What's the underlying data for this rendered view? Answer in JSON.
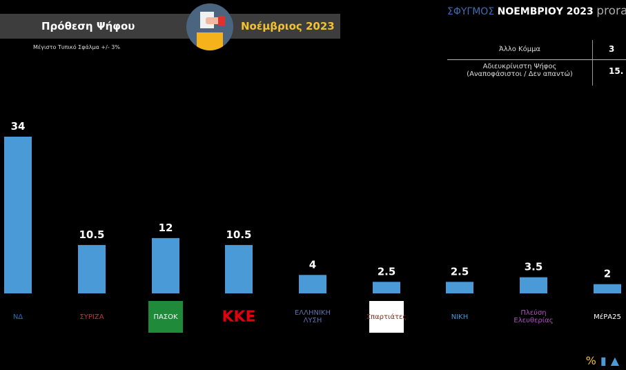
{
  "header": {
    "title": "Πρόθεση Ψήφου",
    "date": "Νοέμβριος 2023",
    "subtitle": "Μέγιστο Τυπικό Σφάλμα +/- 3%",
    "brand_1": "ΣΦΥΓΜΟΣ",
    "brand_2": "ΝΟΕΜΒΡΙΟΥ 2023",
    "brand_3": "prorata"
  },
  "side_table": {
    "rows": [
      {
        "label": "Άλλο Κόμμα",
        "value": "3"
      },
      {
        "label": "Αδιευκρίνιστη Ψήφος\n(Αναποφάσιστοι / Δεν απαντώ)",
        "value": "15."
      }
    ]
  },
  "colors": {
    "bar": "#4a9ad8",
    "background": "#000000",
    "accent": "#f2c230"
  },
  "chart_data": {
    "type": "bar",
    "title": "Πρόθεση Ψήφου",
    "categories": [
      "ΝΔ",
      "ΣΥΡΙΖΑ",
      "ΠΑΣΟΚ",
      "ΚΚΕ",
      "ΕΛΛΗΝΙΚΗ ΛΥΣΗ",
      "Σπαρτιάτες",
      "ΝΙΚΗ",
      "Πλεύση Ελευθερίας",
      "ΜέΡΑ25"
    ],
    "values": [
      34,
      10.5,
      12,
      10.5,
      4,
      2.5,
      2.5,
      3.5,
      2
    ],
    "labels": [
      "34",
      "10.5",
      "12",
      "10.5",
      "4",
      "2.5",
      "2.5",
      "3.5",
      "2"
    ],
    "ylim": [
      0,
      34
    ],
    "grid": false
  },
  "logos": [
    "ΝΔ",
    "ΣΥΡΙΖΑ",
    "ΠΑΣΟΚ",
    "ΚΚΕ",
    "ΕΛΛΗΝΙΚΗ ΛΥΣΗ",
    "Σπαρτιάτες",
    "ΝΙΚΗ",
    "Πλεύση Ελευθερίας",
    "ΜέΡΑ25"
  ]
}
